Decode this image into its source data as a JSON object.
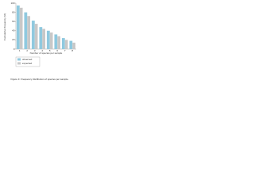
{
  "chart_data": {
    "type": "bar",
    "y_label": "Cumulative frequency (%)",
    "x_label": "Number of species per sample",
    "categories": [
      "1",
      "2",
      "3",
      "4",
      "5",
      "6",
      "7",
      "8"
    ],
    "series": [
      {
        "name": "observed",
        "color": "#8fc9df",
        "values": [
          95,
          80,
          62,
          48,
          40,
          32,
          24,
          18
        ]
      },
      {
        "name": "expected",
        "color": "#c8c8c8",
        "values": [
          90,
          72,
          55,
          44,
          36,
          28,
          20,
          14
        ]
      }
    ],
    "ylim": [
      0,
      100
    ],
    "yticks": [
      0,
      20,
      40,
      60,
      80,
      100
    ],
    "grid": false,
    "legend": "lower-left",
    "caption": "Figure 3. Frequency distribution of species per sample."
  }
}
